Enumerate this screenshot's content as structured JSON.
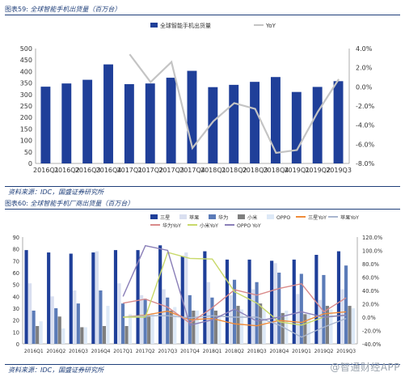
{
  "chart_data": [
    {
      "type": "bar",
      "figure_label": "图表59:",
      "title": "全球智能手机出货量（百万台）",
      "categories": [
        "2016Q1",
        "2016Q2",
        "2016Q3",
        "2016Q4",
        "2017Q1",
        "2017Q2",
        "2017Q3",
        "2017Q4",
        "2018Q1",
        "2018Q2",
        "2018Q3",
        "2018Q4",
        "2019Q1",
        "2019Q2",
        "2019Q3"
      ],
      "series": [
        {
          "name": "全球智能手机出货量",
          "type": "bar",
          "axis": "left",
          "color": "#1f3f99",
          "values": [
            334,
            348,
            364,
            431,
            345,
            348,
            373,
            403,
            332,
            342,
            355,
            376,
            311,
            333,
            358
          ]
        },
        {
          "name": "YoY",
          "type": "line",
          "axis": "right",
          "color": "#c4c4c4",
          "values": [
            null,
            null,
            null,
            null,
            3.4,
            0.5,
            2.6,
            -6.4,
            -3.6,
            -1.7,
            -2.3,
            -6.9,
            -6.6,
            -2.6,
            0.8
          ]
        }
      ],
      "ylim": [
        0,
        500
      ],
      "yticks": [
        0,
        50,
        100,
        150,
        200,
        250,
        300,
        350,
        400,
        450,
        500
      ],
      "y2lim": [
        -8.0,
        4.0
      ],
      "y2ticks": [
        "4.0%",
        "2.0%",
        "0.0%",
        "-2.0%",
        "-4.0%",
        "-6.0%",
        "-8.0%"
      ],
      "legend_position": "top-center",
      "source": "资料来源：IDC，国盛证券研究所"
    },
    {
      "type": "bar",
      "figure_label": "图表60:",
      "title": "全球智能手机厂商出货量（百万台）",
      "categories": [
        "2016Q1",
        "2016Q2",
        "2016Q3",
        "2016Q4",
        "2017Q1",
        "2017Q2",
        "2017Q3",
        "2017Q4",
        "2018Q1",
        "2018Q2",
        "2018Q3",
        "2018Q4",
        "2019Q1",
        "2019Q2",
        "2019Q3"
      ],
      "series": [
        {
          "name": "三星",
          "type": "bar",
          "axis": "left",
          "color": "#1f3f99",
          "values": [
            79,
            77,
            76,
            77,
            79,
            79,
            83,
            74,
            78,
            71,
            71,
            70,
            71,
            75,
            78
          ]
        },
        {
          "name": "苹果",
          "type": "bar",
          "axis": "left",
          "color": "#d9dff0",
          "values": [
            51,
            40,
            45,
            78,
            51,
            41,
            46,
            77,
            52,
            41,
            46,
            68,
            42,
            37,
            46
          ]
        },
        {
          "name": "华为",
          "type": "bar",
          "axis": "left",
          "color": "#5b7bb8",
          "values": [
            28,
            30,
            34,
            45,
            34,
            38,
            39,
            41,
            39,
            54,
            52,
            60,
            59,
            58,
            66
          ]
        },
        {
          "name": "小米",
          "type": "bar",
          "axis": "left",
          "color": "#7f7f7f",
          "values": [
            15,
            23,
            14,
            15,
            15,
            23,
            28,
            28,
            28,
            32,
            34,
            26,
            25,
            32,
            32
          ]
        },
        {
          "name": "OPPO",
          "type": "bar",
          "axis": "left",
          "color": "#dde9f7",
          "values": [
            19,
            13,
            14,
            32,
            25,
            26,
            31,
            28,
            24,
            29,
            29,
            28,
            26,
            29,
            30
          ]
        },
        {
          "name": "三星YoY",
          "type": "line",
          "axis": "right",
          "color": "#f08c3a",
          "values": [
            null,
            null,
            null,
            null,
            0.0,
            3.0,
            9.0,
            -4.0,
            -2.0,
            -10.0,
            -13.0,
            -5.0,
            -8.0,
            5.0,
            8.0
          ]
        },
        {
          "name": "苹果YoY",
          "type": "line",
          "axis": "right",
          "color": "#a9b6cf",
          "values": [
            null,
            null,
            null,
            null,
            0.0,
            2.0,
            2.0,
            -1.0,
            2.0,
            0.0,
            0.0,
            -12.0,
            -30.0,
            -15.0,
            -2.0
          ]
        },
        {
          "name": "华为YoY",
          "type": "line",
          "axis": "right",
          "color": "#d98a8a",
          "values": [
            null,
            null,
            null,
            null,
            21.0,
            27.0,
            15.0,
            -9.0,
            14.0,
            41.0,
            33.0,
            43.0,
            50.0,
            8.0,
            29.0
          ]
        },
        {
          "name": "小米YoY",
          "type": "line",
          "axis": "right",
          "color": "#c8d96a",
          "values": [
            null,
            null,
            null,
            null,
            0.0,
            0.0,
            97.0,
            88.0,
            87.0,
            38.0,
            21.0,
            -7.0,
            -12.0,
            0.0,
            3.0
          ]
        },
        {
          "name": "OPPO YoY",
          "type": "line",
          "axis": "right",
          "color": "#8a7fb8",
          "values": [
            null,
            null,
            null,
            null,
            31.0,
            107.0,
            100.0,
            -12.0,
            -4.0,
            12.0,
            -6.0,
            0.0,
            8.0,
            0.0,
            3.0
          ]
        }
      ],
      "ylim": [
        0,
        90
      ],
      "yticks": [
        0,
        10,
        20,
        30,
        40,
        50,
        60,
        70,
        80,
        90
      ],
      "y2lim": [
        -40.0,
        120.0
      ],
      "y2ticks": [
        "120.0%",
        "100.0%",
        "80.0%",
        "60.0%",
        "40.0%",
        "20.0%",
        "0.0%",
        "-20.0%",
        "-40.0%"
      ],
      "legend_position": "top",
      "source": "资料来源：IDC，国盛证券研究所"
    }
  ],
  "watermark": "@智通财经APP"
}
